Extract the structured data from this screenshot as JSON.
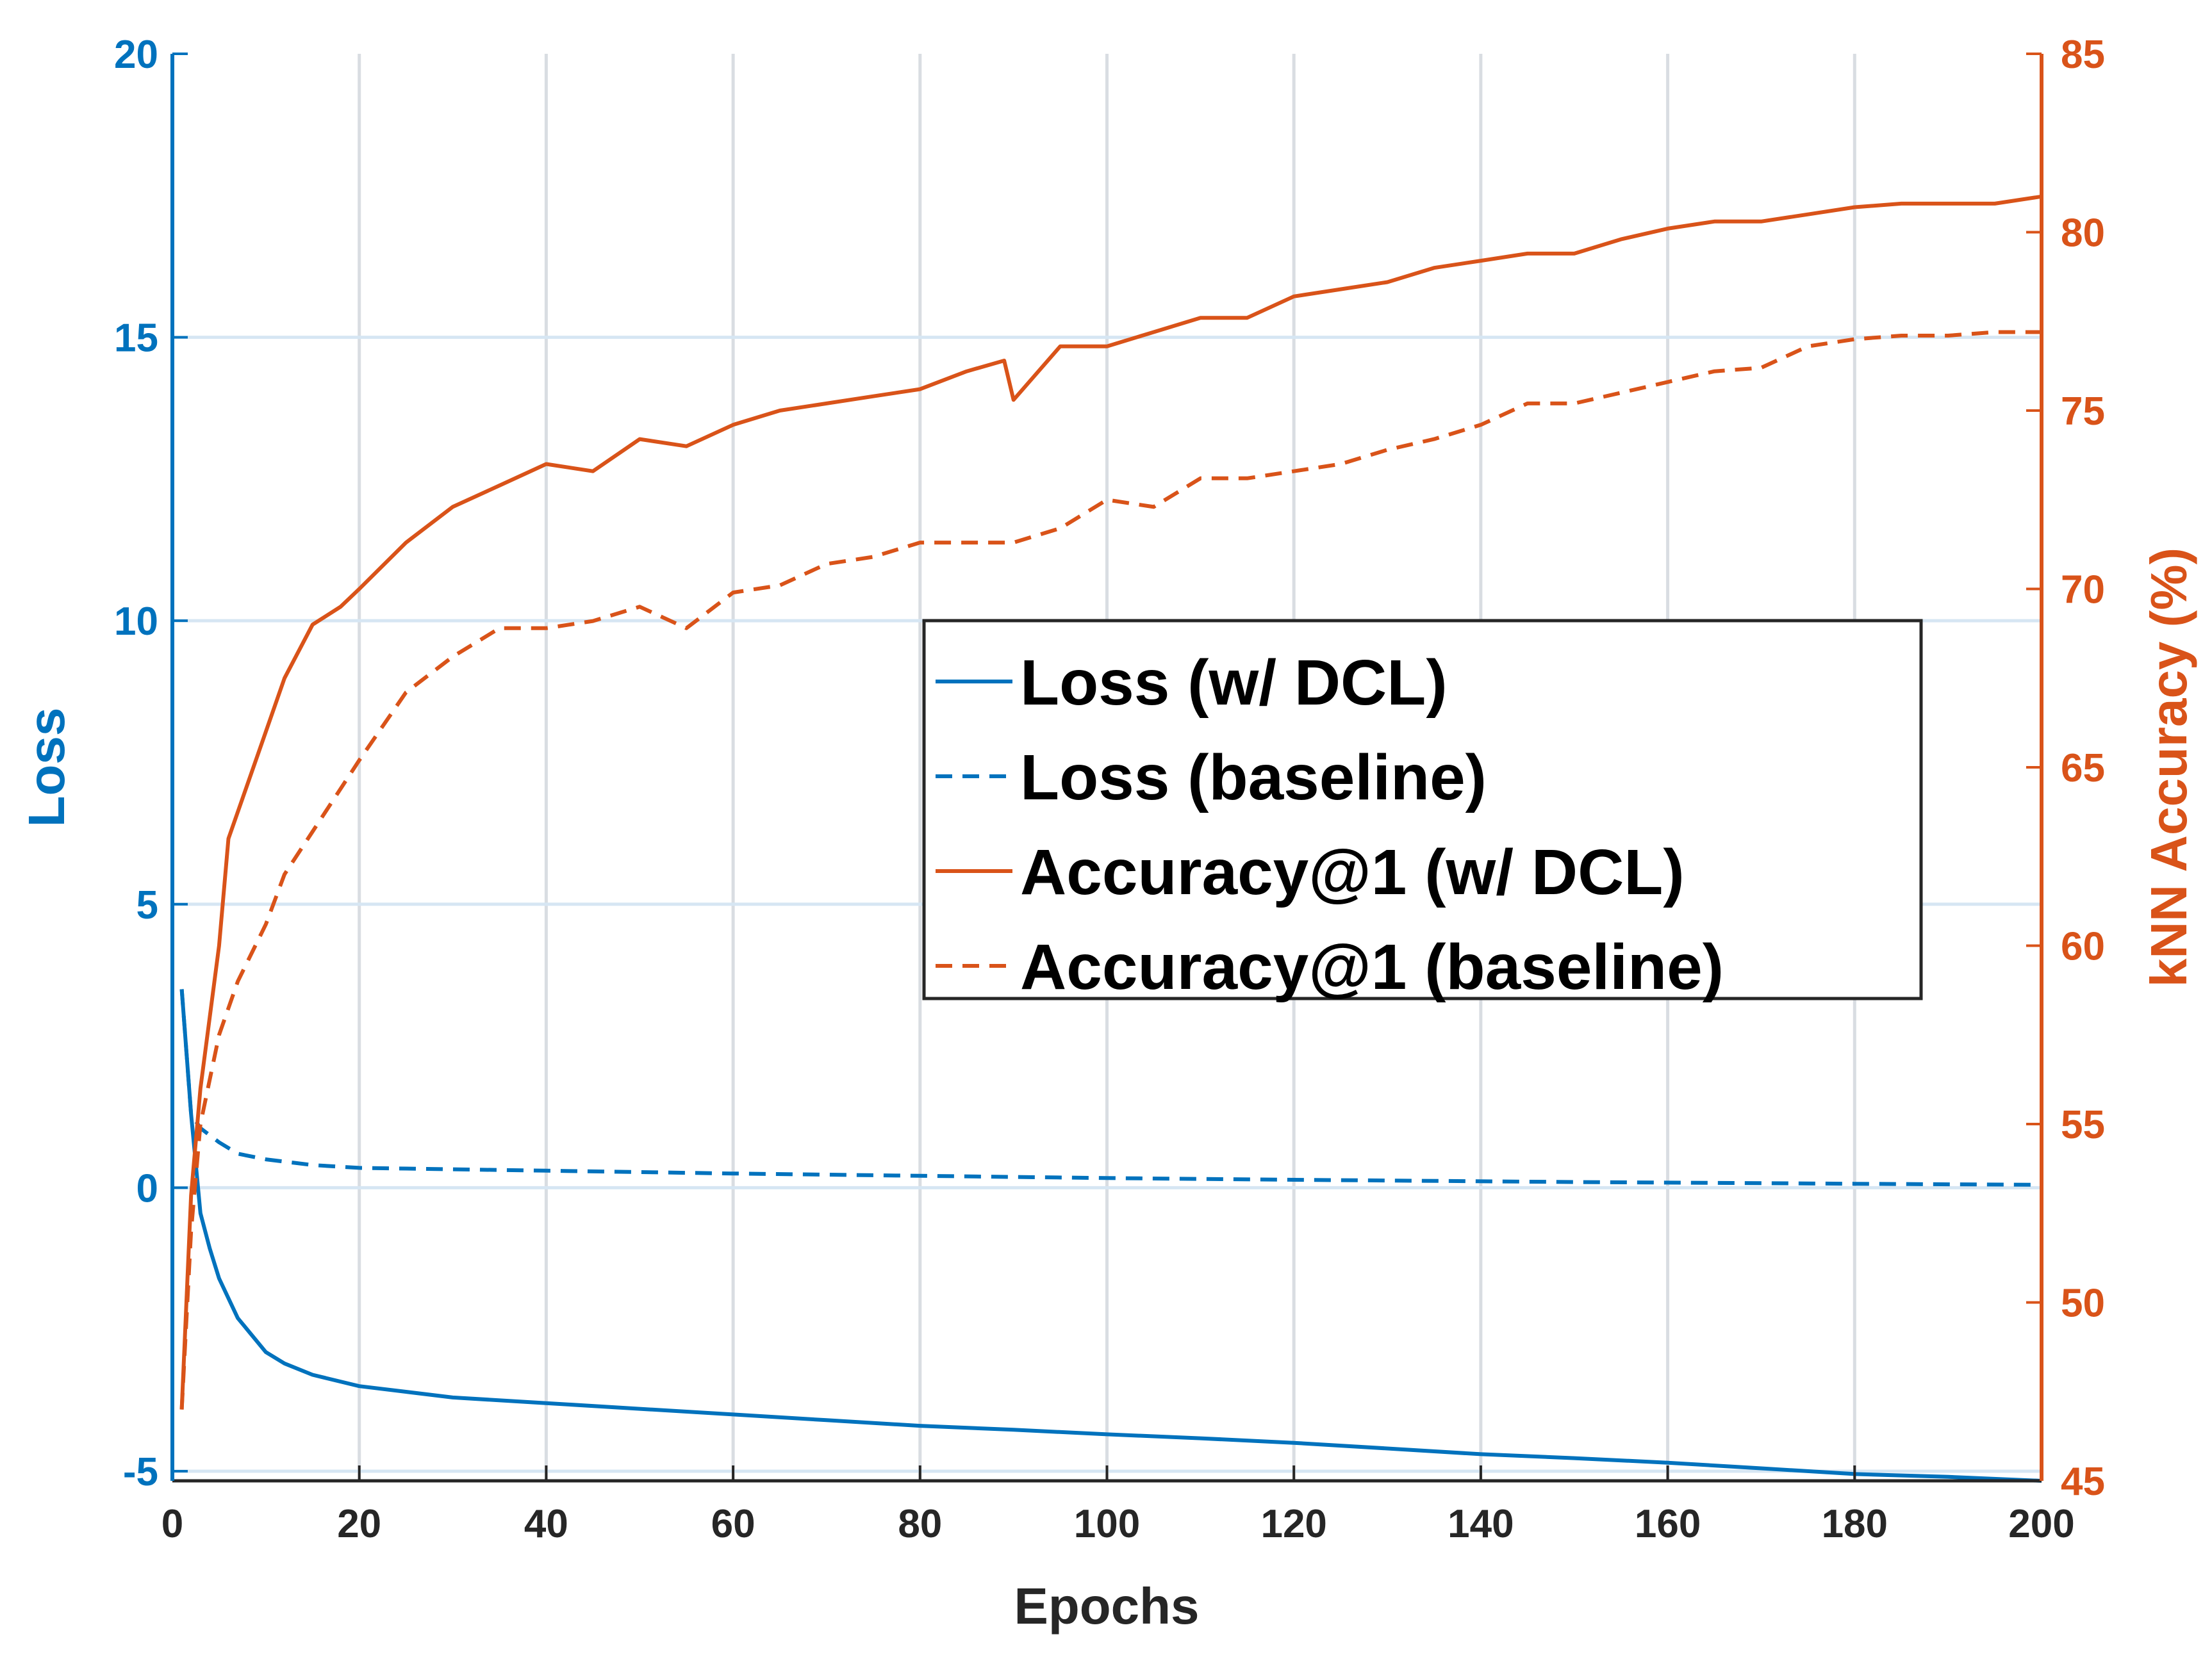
{
  "chart_data": {
    "type": "line",
    "title": "",
    "xlabel": "Epochs",
    "ylabel_left": "Loss",
    "ylabel_right": "kNN Accuracy (%)",
    "xlim": [
      0,
      200
    ],
    "ylim_left": [
      -5.17,
      20
    ],
    "ylim_right": [
      45,
      85
    ],
    "xticks": [
      0,
      20,
      40,
      60,
      80,
      100,
      120,
      140,
      160,
      180,
      200
    ],
    "yticks_left": [
      -5,
      0,
      5,
      10,
      15,
      20
    ],
    "yticks_right": [
      45,
      50,
      55,
      60,
      65,
      70,
      75,
      80,
      85
    ],
    "grid": true,
    "legend_position": "center-right",
    "colors": {
      "left_axis": "#0072BD",
      "right_axis": "#D95319"
    },
    "series": [
      {
        "name": "Loss (w/ DCL)",
        "axis": "left",
        "style": "solid",
        "color": "#0072BD",
        "x": [
          1,
          2,
          3,
          4,
          5,
          7,
          10,
          12,
          15,
          20,
          25,
          30,
          40,
          50,
          60,
          70,
          80,
          90,
          100,
          110,
          120,
          130,
          140,
          150,
          160,
          170,
          180,
          190,
          200
        ],
        "y": [
          3.5,
          1.3,
          -0.45,
          -1.07,
          -1.6,
          -2.3,
          -2.9,
          -3.1,
          -3.3,
          -3.5,
          -3.6,
          -3.7,
          -3.8,
          -3.9,
          -4.0,
          -4.1,
          -4.2,
          -4.27,
          -4.35,
          -4.42,
          -4.5,
          -4.6,
          -4.7,
          -4.77,
          -4.85,
          -4.95,
          -5.05,
          -5.1,
          -5.17
        ]
      },
      {
        "name": "Loss (baseline)",
        "axis": "left",
        "style": "dashed",
        "color": "#0072BD",
        "x": [
          1,
          2,
          3,
          5,
          7,
          10,
          15,
          20,
          40,
          60,
          80,
          100,
          120,
          150,
          180,
          200
        ],
        "y": [
          3.5,
          1.3,
          1.05,
          0.8,
          0.6,
          0.5,
          0.4,
          0.35,
          0.3,
          0.25,
          0.21,
          0.17,
          0.14,
          0.1,
          0.07,
          0.05
        ]
      },
      {
        "name": "Accuracy@1 (w/ DCL)",
        "axis": "right",
        "style": "solid",
        "color": "#D95319",
        "x": [
          1,
          2,
          3,
          5,
          6,
          8,
          10,
          12,
          15,
          18,
          20,
          25,
          30,
          35,
          40,
          45,
          50,
          55,
          60,
          65,
          70,
          75,
          80,
          85,
          89,
          90,
          95,
          100,
          105,
          110,
          115,
          120,
          125,
          130,
          135,
          140,
          145,
          150,
          155,
          160,
          165,
          170,
          175,
          180,
          185,
          190,
          195,
          200
        ],
        "y": [
          47,
          53,
          56,
          60,
          63,
          64.5,
          66,
          67.5,
          69,
          69.5,
          70,
          71.3,
          72.3,
          72.9,
          73.5,
          73.3,
          74.2,
          74,
          74.6,
          75,
          75.2,
          75.4,
          75.6,
          76.1,
          76.4,
          75.3,
          76.8,
          76.8,
          77.2,
          77.6,
          77.6,
          78.2,
          78.4,
          78.6,
          79,
          79.2,
          79.4,
          79.4,
          79.8,
          80.1,
          80.3,
          80.3,
          80.5,
          80.7,
          80.8,
          80.8,
          80.8,
          81
        ]
      },
      {
        "name": "Accuracy@1 (baseline)",
        "axis": "right",
        "style": "dashed",
        "color": "#D95319",
        "x": [
          1,
          2,
          3,
          5,
          7,
          10,
          12,
          15,
          20,
          25,
          30,
          35,
          40,
          45,
          50,
          55,
          60,
          65,
          70,
          75,
          80,
          85,
          90,
          95,
          100,
          105,
          110,
          115,
          120,
          125,
          130,
          135,
          140,
          145,
          150,
          155,
          160,
          165,
          170,
          175,
          180,
          185,
          190,
          195,
          200
        ],
        "y": [
          47,
          52,
          55,
          57.5,
          59,
          60.6,
          62,
          63.2,
          65.2,
          67.1,
          68.1,
          68.9,
          68.9,
          69.1,
          69.5,
          68.9,
          69.9,
          70.1,
          70.7,
          70.9,
          71.3,
          71.3,
          71.3,
          71.7,
          72.5,
          72.3,
          73.1,
          73.1,
          73.3,
          73.5,
          73.9,
          74.2,
          74.6,
          75.2,
          75.2,
          75.5,
          75.8,
          76.1,
          76.2,
          76.8,
          77,
          77.1,
          77.1,
          77.2,
          77.2
        ]
      }
    ]
  }
}
